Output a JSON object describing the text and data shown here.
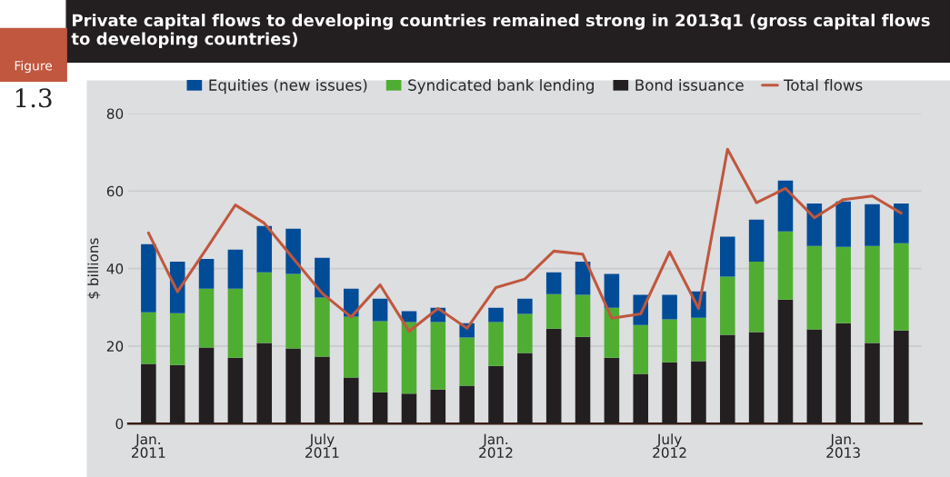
{
  "chart_data": {
    "type": "bar",
    "title": "Private capital flows to developing countries remained strong in 2013q1 (gross capital flows to developing countries)",
    "annotations": [
      "Figure",
      "1.3"
    ],
    "ylabel": "$ billions",
    "categories": [
      "Jan.\n2011",
      null,
      null,
      null,
      null,
      null,
      "July\n2011",
      null,
      null,
      null,
      null,
      null,
      "Jan.\n2012",
      null,
      null,
      null,
      null,
      null,
      "July\n2012",
      null,
      null,
      null,
      null,
      null,
      "Jan.\n2013",
      null,
      null
    ],
    "stacked": true,
    "series": [
      {
        "name": "Bond issuance",
        "color": "#231f20",
        "values": [
          15.4,
          15.1,
          19.6,
          17.0,
          20.8,
          19.4,
          17.3,
          11.9,
          8.1,
          7.7,
          8.8,
          9.8,
          14.9,
          18.2,
          24.5,
          22.4,
          17.0,
          12.8,
          15.8,
          16.1,
          22.9,
          23.6,
          32.0,
          24.3,
          25.9,
          20.8,
          24.0
        ]
      },
      {
        "name": "Syndicated bank lending",
        "color": "#4fae32",
        "values": [
          13.3,
          13.4,
          15.2,
          17.8,
          18.2,
          19.2,
          15.2,
          15.7,
          18.3,
          18.5,
          17.4,
          12.4,
          11.3,
          10.1,
          8.9,
          10.8,
          12.9,
          12.6,
          11.1,
          11.2,
          15.0,
          18.2,
          17.6,
          21.5,
          19.7,
          25.0,
          22.5
        ]
      },
      {
        "name": "Equities (new issues)",
        "color": "#004c97",
        "values": [
          17.6,
          13.3,
          7.7,
          10.1,
          12.0,
          11.7,
          10.3,
          7.2,
          5.8,
          2.8,
          3.7,
          3.7,
          3.7,
          3.9,
          5.6,
          8.6,
          8.7,
          7.8,
          6.3,
          6.8,
          10.3,
          10.8,
          13.1,
          11.0,
          11.7,
          10.8,
          10.3
        ]
      },
      {
        "name": "Total flows",
        "type": "line",
        "color": "#c0573e",
        "values": [
          49.2,
          34.0,
          45.1,
          56.4,
          51.7,
          42.6,
          33.6,
          27.5,
          35.8,
          23.8,
          29.7,
          24.6,
          35.1,
          37.3,
          44.5,
          43.7,
          27.2,
          28.3,
          44.3,
          29.7,
          70.8,
          57.0,
          60.7,
          53.1,
          57.8,
          58.7,
          54.3
        ]
      }
    ],
    "ylim": [
      0,
      80
    ],
    "yticks": [
      0,
      20,
      40,
      60,
      80
    ],
    "grid": "y",
    "legend": "top",
    "tick_labels": "xy"
  }
}
